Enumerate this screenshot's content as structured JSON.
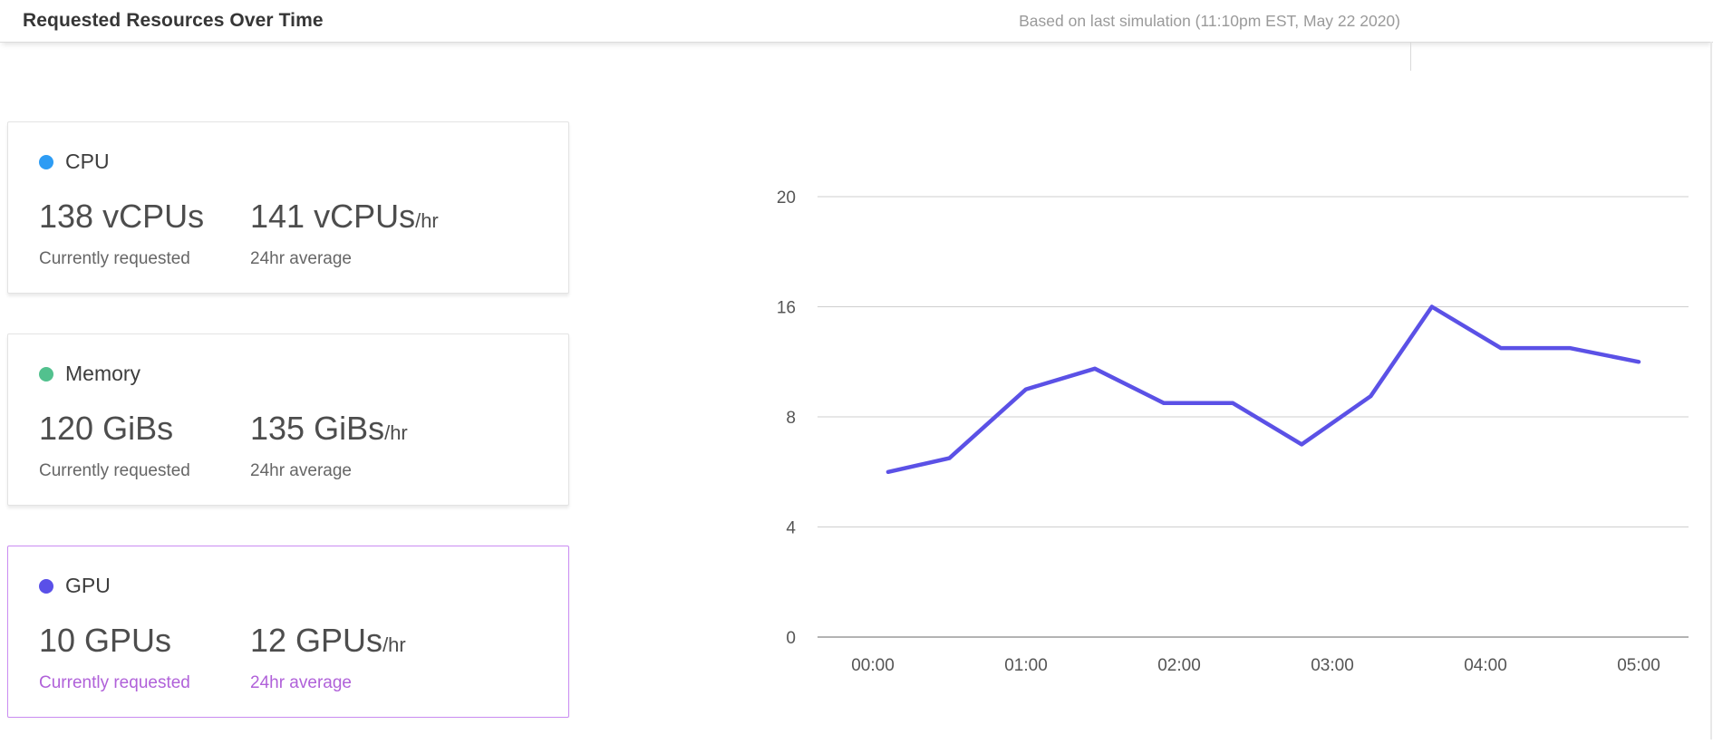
{
  "header": {
    "title": "Requested Resources Over Time",
    "subtitle": "Based on last simulation (11:10pm EST, May 22 2020)"
  },
  "cards": [
    {
      "id": "cpu",
      "label": "CPU",
      "dot_color": "#2d9cf4",
      "current_value": "138 vCPUs",
      "current_label": "Currently requested",
      "average_value": "141 vCPUs",
      "average_suffix": "/hr",
      "average_label": "24hr average",
      "selected": false
    },
    {
      "id": "memory",
      "label": "Memory",
      "dot_color": "#52c18e",
      "current_value": "120 GiBs",
      "current_label": "Currently requested",
      "average_value": "135 GiBs",
      "average_suffix": "/hr",
      "average_label": "24hr average",
      "selected": false
    },
    {
      "id": "gpu",
      "label": "GPU",
      "dot_color": "#5a50e8",
      "current_value": "10 GPUs",
      "current_label": "Currently requested",
      "average_value": "12 GPUs",
      "average_suffix": "/hr",
      "average_label": "24hr average",
      "selected": true,
      "accent_color": "#b061d9",
      "border_color": "#ca8df2"
    }
  ],
  "chart_data": {
    "type": "line",
    "x_labels": [
      "00:00",
      "01:00",
      "02:00",
      "03:00",
      "04:00",
      "05:00"
    ],
    "y_ticks": [
      20,
      16,
      8,
      4,
      0
    ],
    "y_axis_note": "tick labels equally spaced as displayed (non-linear scale)",
    "grid": "horizontal",
    "legend": "none (series selected via GPU card)",
    "series": [
      {
        "name": "GPU",
        "color": "#5b51e6",
        "x_hours": [
          0.1,
          0.5,
          1.0,
          1.45,
          1.9,
          2.35,
          2.8,
          3.25,
          3.65,
          4.1,
          4.55,
          5.0
        ],
        "values": [
          6,
          6.5,
          10,
          11.5,
          9,
          9,
          7,
          9.5,
          16,
          13,
          13,
          12
        ]
      }
    ]
  }
}
